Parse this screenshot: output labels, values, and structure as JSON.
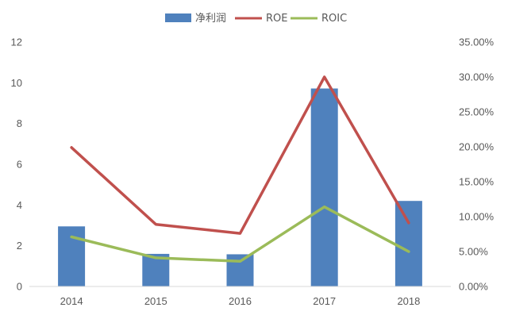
{
  "chart_data": {
    "type": "bar",
    "categories": [
      "2014",
      "2015",
      "2016",
      "2017",
      "2018"
    ],
    "series": [
      {
        "name": "净利润",
        "type": "bar",
        "axis": "left",
        "values": [
          2.95,
          1.6,
          1.58,
          9.72,
          4.2
        ]
      },
      {
        "name": "ROE",
        "type": "line",
        "axis": "right",
        "values": [
          0.199,
          0.089,
          0.076,
          0.3,
          0.091
        ]
      },
      {
        "name": "ROIC",
        "type": "line",
        "axis": "right",
        "values": [
          0.071,
          0.041,
          0.036,
          0.114,
          0.05
        ]
      }
    ],
    "y_left": {
      "ylim": [
        0,
        12
      ],
      "ticks": [
        "0",
        "2",
        "4",
        "6",
        "8",
        "10",
        "12"
      ]
    },
    "y_right": {
      "ylim": [
        0,
        0.35
      ],
      "ticks": [
        "0.00%",
        "5.00%",
        "10.00%",
        "15.00%",
        "20.00%",
        "25.00%",
        "30.00%",
        "35.00%"
      ]
    },
    "grid": false,
    "legend": "top-center",
    "colors": {
      "净利润": "#4f81bd",
      "ROE": "#c0504d",
      "ROIC": "#9bbb59"
    }
  }
}
